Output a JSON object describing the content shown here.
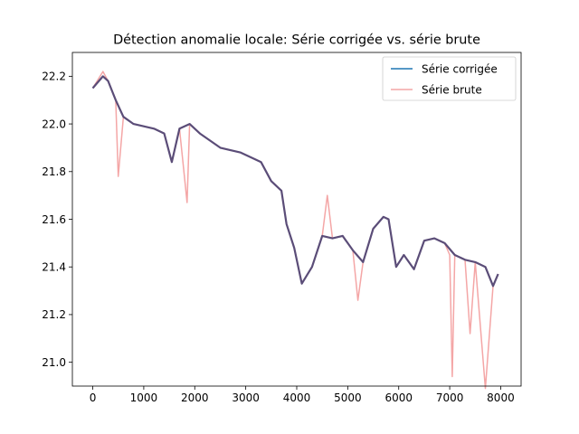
{
  "chart_data": {
    "type": "line",
    "title": "Détection anomalie locale: Série corrigée vs. série brute",
    "xlabel": "",
    "ylabel": "",
    "xlim": [
      -400,
      8400
    ],
    "ylim": [
      20.9,
      22.3
    ],
    "xticks": [
      0,
      1000,
      2000,
      3000,
      4000,
      5000,
      6000,
      7000,
      8000
    ],
    "yticks": [
      21.0,
      21.2,
      21.4,
      21.6,
      21.8,
      22.0,
      22.2
    ],
    "grid": false,
    "legend_position": "top-right",
    "series": [
      {
        "name": "Série corrigée",
        "color": "#1f77b4",
        "x": [
          0,
          200,
          300,
          450,
          600,
          800,
          1000,
          1200,
          1400,
          1550,
          1700,
          1900,
          2100,
          2300,
          2500,
          2700,
          2900,
          3100,
          3300,
          3500,
          3700,
          3800,
          3950,
          4100,
          4300,
          4500,
          4700,
          4900,
          5100,
          5300,
          5500,
          5700,
          5800,
          5950,
          6100,
          6300,
          6500,
          6700,
          6900,
          7100,
          7300,
          7500,
          7700,
          7850,
          7950
        ],
        "y": [
          22.15,
          22.2,
          22.18,
          22.1,
          22.03,
          22.0,
          21.99,
          21.98,
          21.96,
          21.84,
          21.98,
          22.0,
          21.96,
          21.93,
          21.9,
          21.89,
          21.88,
          21.86,
          21.84,
          21.76,
          21.72,
          21.58,
          21.48,
          21.33,
          21.4,
          21.53,
          21.52,
          21.53,
          21.47,
          21.42,
          21.56,
          21.61,
          21.6,
          21.4,
          21.45,
          21.39,
          21.51,
          21.52,
          21.5,
          21.45,
          21.43,
          21.42,
          21.4,
          21.32,
          21.37
        ]
      },
      {
        "name": "Série brute",
        "color": "#f4a6a6",
        "x": [
          0,
          200,
          300,
          450,
          500,
          600,
          800,
          1000,
          1200,
          1400,
          1550,
          1700,
          1850,
          1900,
          2100,
          2300,
          2500,
          2700,
          2900,
          3100,
          3300,
          3500,
          3700,
          3800,
          3950,
          4100,
          4300,
          4500,
          4600,
          4700,
          4900,
          5100,
          5200,
          5300,
          5500,
          5700,
          5800,
          5950,
          6100,
          6300,
          6500,
          6700,
          6900,
          7000,
          7050,
          7100,
          7300,
          7400,
          7500,
          7700,
          7850,
          7950
        ],
        "y": [
          22.15,
          22.22,
          22.18,
          22.1,
          21.78,
          22.03,
          22.0,
          21.99,
          21.98,
          21.96,
          21.84,
          21.98,
          21.67,
          22.0,
          21.96,
          21.93,
          21.9,
          21.89,
          21.88,
          21.86,
          21.84,
          21.76,
          21.72,
          21.58,
          21.48,
          21.33,
          21.4,
          21.53,
          21.7,
          21.52,
          21.53,
          21.47,
          21.26,
          21.42,
          21.56,
          21.61,
          21.6,
          21.4,
          21.45,
          21.39,
          21.51,
          21.52,
          21.5,
          21.45,
          20.94,
          21.45,
          21.43,
          21.12,
          21.42,
          20.89,
          21.32,
          21.37
        ]
      }
    ]
  }
}
